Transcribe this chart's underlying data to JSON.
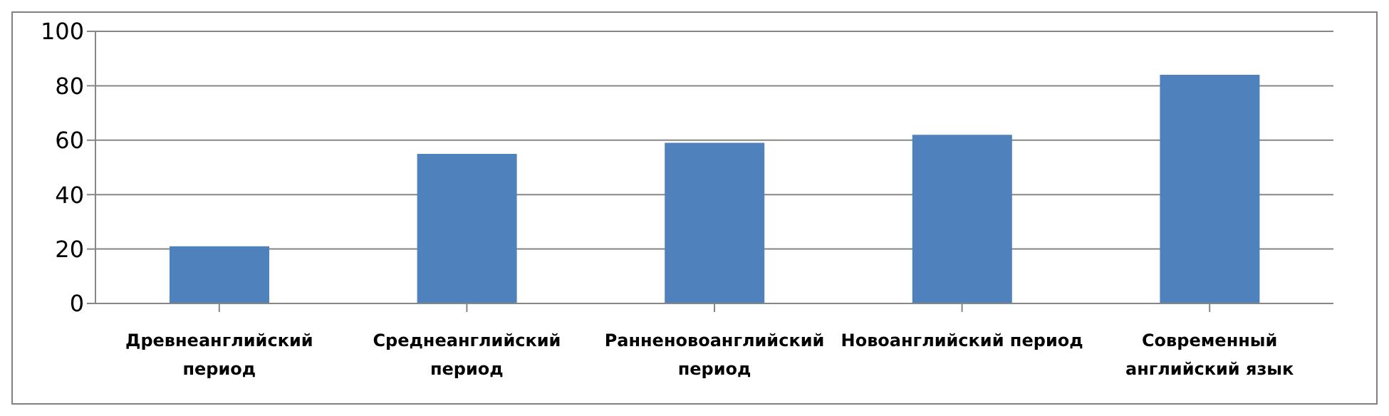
{
  "chart_data": {
    "type": "bar",
    "categories": [
      "Древнеанглийский период",
      "Среднеанглийский период",
      "Ранненовоанглийский период",
      "Новоанглийский период",
      "Современный английский язык"
    ],
    "values": [
      21,
      55,
      59,
      62,
      84
    ],
    "color": "#4f81bd",
    "ylim": [
      0,
      100
    ],
    "yticks": [
      0,
      20,
      40,
      60,
      80,
      100
    ],
    "grid": "y"
  }
}
